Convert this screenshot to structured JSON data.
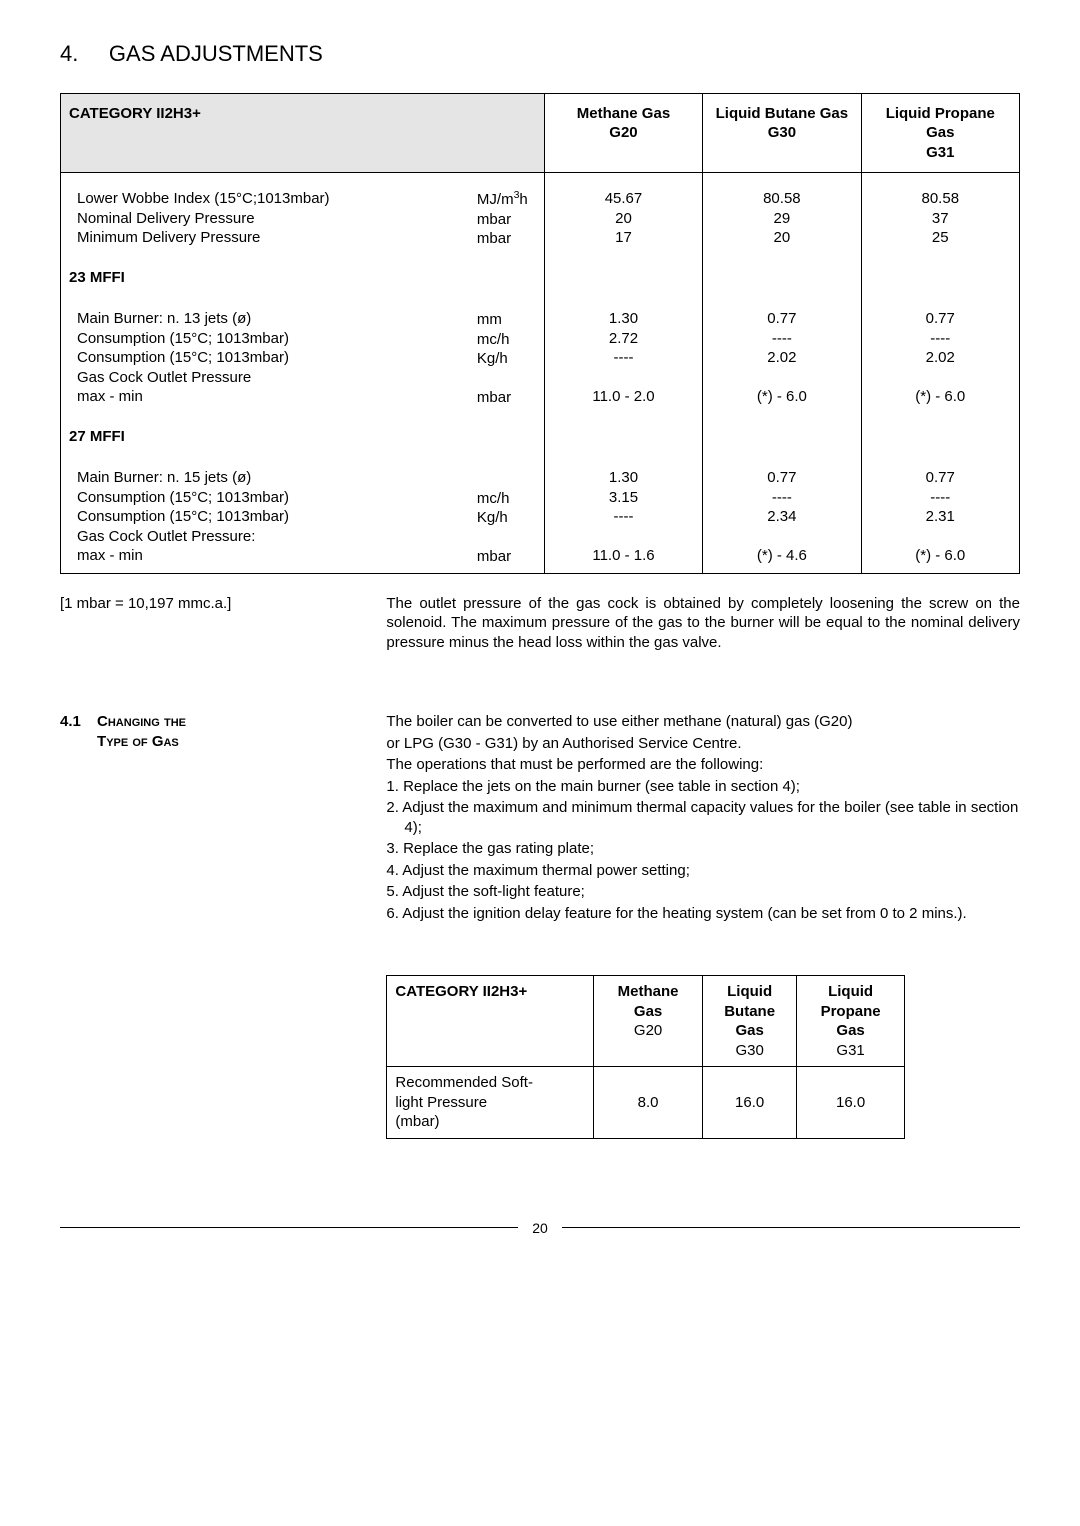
{
  "section": {
    "number": "4.",
    "title": "GAS ADJUSTMENTS"
  },
  "main_table": {
    "headers": {
      "category": "CATEGORY II2H3+",
      "g20": "Methane Gas",
      "g20_sub": "G20",
      "g30": "Liquid Butane Gas",
      "g30_sub": "G30",
      "g31": "Liquid Propane Gas",
      "g31_sub": "G31"
    },
    "intro": {
      "rows": [
        {
          "label": "Lower Wobbe Index (15°C;1013mbar)",
          "unit": "MJ/m",
          "unit_sup": "3",
          "unit_suffix": "h",
          "g20": "45.67",
          "g30": "80.58",
          "g31": "80.58"
        },
        {
          "label": "Nominal Delivery Pressure",
          "unit": "mbar",
          "g20": "20",
          "g30": "29",
          "g31": "37"
        },
        {
          "label": "Minimum Delivery Pressure",
          "unit": "mbar",
          "g20": "17",
          "g30": "20",
          "g31": "25"
        }
      ]
    },
    "groups": [
      {
        "title": "23 MFFI",
        "rows": [
          {
            "label": "Main Burner: n. 13 jets (ø)",
            "unit": "mm",
            "g20": "1.30",
            "g30": "0.77",
            "g31": "0.77"
          },
          {
            "label": "Consumption (15°C; 1013mbar)",
            "unit": "mc/h",
            "g20": "2.72",
            "g30": "----",
            "g31": "----"
          },
          {
            "label": "Consumption (15°C; 1013mbar)",
            "unit": "Kg/h",
            "g20": "----",
            "g30": "2.02",
            "g31": "2.02"
          },
          {
            "label": "Gas Cock Outlet Pressure",
            "unit": "",
            "g20": "",
            "g30": "",
            "g31": ""
          },
          {
            "label": "max - min",
            "unit": "mbar",
            "g20": "11.0 - 2.0",
            "g30": "(*) - 6.0",
            "g31": "(*) - 6.0"
          }
        ]
      },
      {
        "title": "27 MFFI",
        "rows": [
          {
            "label": "Main Burner: n. 15 jets (ø)",
            "unit": "",
            "g20": "1.30",
            "g30": "0.77",
            "g31": "0.77"
          },
          {
            "label": "Consumption (15°C; 1013mbar)",
            "unit": "mc/h",
            "g20": "3.15",
            "g30": "----",
            "g31": "----"
          },
          {
            "label": "Consumption (15°C; 1013mbar)",
            "unit": "Kg/h",
            "g20": "----",
            "g30": "2.34",
            "g31": "2.31"
          },
          {
            "label": "Gas Cock Outlet Pressure:",
            "unit": "",
            "g20": "",
            "g30": "",
            "g31": ""
          },
          {
            "label": "max - min",
            "unit": "mbar",
            "g20": "11.0 - 1.6",
            "g30": "(*) - 4.6",
            "g31": "(*) - 6.0"
          }
        ]
      }
    ]
  },
  "note": {
    "left": "[1 mbar = 10,197 mmc.a.]",
    "right": "The outlet pressure of the gas cock is obtained by completely loosening the screw on the solenoid. The maximum pressure of the gas to the burner will be equal to the nominal delivery pressure minus the head loss within the gas valve."
  },
  "subsection": {
    "num": "4.1",
    "heading_line1": "Changing the",
    "heading_line2": "Type of Gas",
    "intro1": "The boiler can be converted to use either methane (natural) gas (G20)",
    "intro2": "or LPG (G30 - G31) by an Authorised Service Centre.",
    "intro3": "The operations that must be performed are the following:",
    "items": [
      "1. Replace the jets on the main burner (see table in section 4);",
      "2. Adjust the maximum and minimum thermal capacity values for the boiler (see table in section 4);",
      "3. Replace the gas rating plate;",
      "4. Adjust the maximum thermal power setting;",
      "5. Adjust the soft-light feature;",
      "6. Adjust the ignition delay feature for the heating system (can be set from 0 to 2 mins.)."
    ]
  },
  "small_table": {
    "headers": {
      "category": "CATEGORY II2H3+",
      "g20_a": "Methane",
      "g20_b": "Gas",
      "g20_c": "G20",
      "g30_a": "Liquid",
      "g30_b": "Butane",
      "g30_c": "Gas",
      "g30_d": "G30",
      "g31_a": "Liquid",
      "g31_b": "Propane",
      "g31_c": "Gas",
      "g31_d": "G31"
    },
    "row": {
      "label_a": "Recommended Soft-",
      "label_b": "light Pressure",
      "label_c": "(mbar)",
      "g20": "8.0",
      "g30": "16.0",
      "g31": "16.0"
    }
  },
  "page": "20"
}
